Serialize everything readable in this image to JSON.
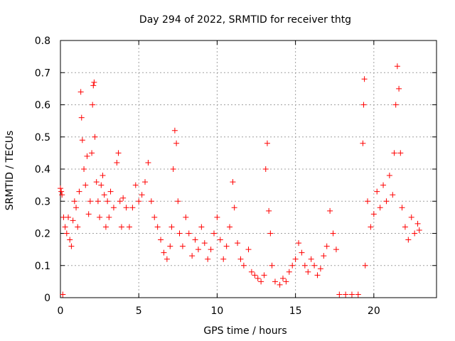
{
  "chart_data": {
    "type": "scatter",
    "title": "Day 294 of 2022, SRMTID for receiver thtg",
    "xlabel": "GPS time / hours",
    "ylabel": "SRMTID / TECUs",
    "xlim": [
      0,
      24
    ],
    "ylim": [
      0,
      0.8
    ],
    "x_ticks": [
      0,
      5,
      10,
      15,
      20
    ],
    "x_tick_labels": [
      "0",
      "5",
      "10",
      "15",
      "20"
    ],
    "y_ticks": [
      0,
      0.1,
      0.2,
      0.3,
      0.4,
      0.5,
      0.6,
      0.7,
      0.8
    ],
    "y_tick_labels": [
      "0",
      "0.1",
      "0.2",
      "0.3",
      "0.4",
      "0.5",
      "0.6",
      "0.7",
      "0.8"
    ],
    "grid": true,
    "marker": "+",
    "series_color": "#ff0000",
    "series": [
      {
        "name": "SRMTID",
        "points": [
          [
            0.0,
            0.34
          ],
          [
            0.05,
            0.33
          ],
          [
            0.1,
            0.32
          ],
          [
            0.15,
            0.01
          ],
          [
            0.2,
            0.25
          ],
          [
            0.3,
            0.22
          ],
          [
            0.4,
            0.2
          ],
          [
            0.5,
            0.25
          ],
          [
            0.6,
            0.18
          ],
          [
            0.7,
            0.16
          ],
          [
            0.8,
            0.24
          ],
          [
            0.9,
            0.3
          ],
          [
            1.0,
            0.28
          ],
          [
            1.1,
            0.22
          ],
          [
            1.2,
            0.33
          ],
          [
            1.3,
            0.64
          ],
          [
            1.35,
            0.56
          ],
          [
            1.4,
            0.49
          ],
          [
            1.5,
            0.4
          ],
          [
            1.6,
            0.35
          ],
          [
            1.7,
            0.44
          ],
          [
            1.8,
            0.26
          ],
          [
            1.9,
            0.3
          ],
          [
            2.0,
            0.45
          ],
          [
            2.05,
            0.6
          ],
          [
            2.1,
            0.66
          ],
          [
            2.15,
            0.67
          ],
          [
            2.2,
            0.5
          ],
          [
            2.3,
            0.36
          ],
          [
            2.4,
            0.3
          ],
          [
            2.5,
            0.25
          ],
          [
            2.6,
            0.35
          ],
          [
            2.7,
            0.38
          ],
          [
            2.8,
            0.32
          ],
          [
            2.9,
            0.22
          ],
          [
            3.0,
            0.3
          ],
          [
            3.1,
            0.25
          ],
          [
            3.2,
            0.33
          ],
          [
            3.4,
            0.28
          ],
          [
            3.6,
            0.42
          ],
          [
            3.7,
            0.45
          ],
          [
            3.8,
            0.3
          ],
          [
            3.9,
            0.22
          ],
          [
            4.0,
            0.31
          ],
          [
            4.2,
            0.28
          ],
          [
            4.4,
            0.22
          ],
          [
            4.6,
            0.28
          ],
          [
            4.8,
            0.35
          ],
          [
            5.0,
            0.3
          ],
          [
            5.2,
            0.32
          ],
          [
            5.4,
            0.36
          ],
          [
            5.6,
            0.42
          ],
          [
            5.8,
            0.3
          ],
          [
            6.0,
            0.25
          ],
          [
            6.2,
            0.22
          ],
          [
            6.4,
            0.18
          ],
          [
            6.6,
            0.14
          ],
          [
            6.8,
            0.12
          ],
          [
            7.0,
            0.16
          ],
          [
            7.1,
            0.22
          ],
          [
            7.2,
            0.4
          ],
          [
            7.3,
            0.52
          ],
          [
            7.4,
            0.48
          ],
          [
            7.5,
            0.3
          ],
          [
            7.6,
            0.2
          ],
          [
            7.8,
            0.16
          ],
          [
            8.0,
            0.25
          ],
          [
            8.2,
            0.2
          ],
          [
            8.4,
            0.13
          ],
          [
            8.6,
            0.18
          ],
          [
            8.8,
            0.15
          ],
          [
            9.0,
            0.22
          ],
          [
            9.2,
            0.17
          ],
          [
            9.4,
            0.12
          ],
          [
            9.6,
            0.15
          ],
          [
            9.8,
            0.2
          ],
          [
            10.0,
            0.25
          ],
          [
            10.2,
            0.18
          ],
          [
            10.4,
            0.12
          ],
          [
            10.6,
            0.16
          ],
          [
            10.8,
            0.22
          ],
          [
            11.0,
            0.36
          ],
          [
            11.1,
            0.28
          ],
          [
            11.3,
            0.17
          ],
          [
            11.5,
            0.12
          ],
          [
            11.7,
            0.1
          ],
          [
            12.0,
            0.15
          ],
          [
            12.2,
            0.08
          ],
          [
            12.4,
            0.07
          ],
          [
            12.6,
            0.06
          ],
          [
            12.8,
            0.05
          ],
          [
            13.0,
            0.07
          ],
          [
            13.1,
            0.4
          ],
          [
            13.2,
            0.48
          ],
          [
            13.3,
            0.27
          ],
          [
            13.4,
            0.2
          ],
          [
            13.5,
            0.1
          ],
          [
            13.7,
            0.05
          ],
          [
            14.0,
            0.04
          ],
          [
            14.2,
            0.06
          ],
          [
            14.4,
            0.05
          ],
          [
            14.6,
            0.08
          ],
          [
            14.8,
            0.1
          ],
          [
            15.0,
            0.12
          ],
          [
            15.2,
            0.17
          ],
          [
            15.4,
            0.14
          ],
          [
            15.6,
            0.1
          ],
          [
            15.8,
            0.08
          ],
          [
            16.0,
            0.12
          ],
          [
            16.2,
            0.1
          ],
          [
            16.4,
            0.07
          ],
          [
            16.6,
            0.09
          ],
          [
            16.8,
            0.13
          ],
          [
            17.0,
            0.16
          ],
          [
            17.2,
            0.27
          ],
          [
            17.4,
            0.2
          ],
          [
            17.6,
            0.15
          ],
          [
            17.8,
            0.01
          ],
          [
            18.2,
            0.01
          ],
          [
            18.6,
            0.01
          ],
          [
            19.0,
            0.01
          ],
          [
            19.3,
            0.48
          ],
          [
            19.35,
            0.6
          ],
          [
            19.4,
            0.68
          ],
          [
            19.45,
            0.1
          ],
          [
            19.6,
            0.3
          ],
          [
            19.8,
            0.22
          ],
          [
            20.0,
            0.26
          ],
          [
            20.2,
            0.33
          ],
          [
            20.4,
            0.28
          ],
          [
            20.6,
            0.35
          ],
          [
            20.8,
            0.3
          ],
          [
            21.0,
            0.38
          ],
          [
            21.2,
            0.32
          ],
          [
            21.3,
            0.45
          ],
          [
            21.4,
            0.6
          ],
          [
            21.5,
            0.72
          ],
          [
            21.6,
            0.65
          ],
          [
            21.7,
            0.45
          ],
          [
            21.8,
            0.28
          ],
          [
            22.0,
            0.22
          ],
          [
            22.2,
            0.18
          ],
          [
            22.4,
            0.25
          ],
          [
            22.6,
            0.2
          ],
          [
            22.8,
            0.23
          ],
          [
            22.9,
            0.21
          ]
        ]
      }
    ]
  }
}
